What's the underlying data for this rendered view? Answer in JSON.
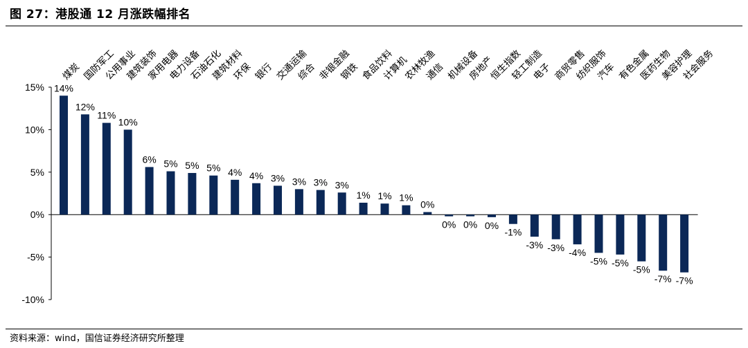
{
  "header": {
    "title": "图 27：港股通 12 月涨跌幅排名"
  },
  "footer": {
    "source": "资料来源：wind，国信证券经济研究所整理"
  },
  "colors": {
    "bar": "#0b2857",
    "axis": "#000000"
  },
  "chart_data": {
    "type": "bar",
    "title": "",
    "xlabel": "",
    "ylabel": "",
    "ylim": [
      -10,
      15
    ],
    "yticks": [
      15,
      10,
      5,
      0,
      -5,
      -10
    ],
    "ytick_labels": [
      "15%",
      "10%",
      "5%",
      "0%",
      "-5%",
      "-10%"
    ],
    "grid": false,
    "legend": "none",
    "categories": [
      "煤炭",
      "国防军工",
      "公用事业",
      "建筑装饰",
      "家用电器",
      "电力设备",
      "石油石化",
      "建筑材料",
      "环保",
      "银行",
      "交通运输",
      "综合",
      "非银金融",
      "钢铁",
      "食品饮料",
      "计算机",
      "农林牧渔",
      "通信",
      "机械设备",
      "房地产",
      "恒生指数",
      "轻工制造",
      "电子",
      "商贸零售",
      "纺织服饰",
      "汽车",
      "有色金属",
      "医药生物",
      "美容护理",
      "社会服务"
    ],
    "values": [
      14.0,
      11.8,
      10.8,
      10.0,
      5.6,
      5.1,
      4.9,
      4.6,
      4.1,
      3.7,
      3.4,
      3.0,
      2.9,
      2.6,
      1.4,
      1.3,
      1.1,
      0.3,
      -0.2,
      -0.2,
      -0.3,
      -1.1,
      -2.6,
      -2.9,
      -3.5,
      -4.5,
      -4.7,
      -5.5,
      -6.6,
      -6.8
    ],
    "data_labels": [
      "14%",
      "12%",
      "11%",
      "10%",
      "6%",
      "5%",
      "5%",
      "5%",
      "4%",
      "4%",
      "3%",
      "3%",
      "3%",
      "3%",
      "1%",
      "1%",
      "1%",
      "0%",
      "0%",
      "0%",
      "0%",
      "-1%",
      "-3%",
      "-3%",
      "-4%",
      "-5%",
      "-5%",
      "-5%",
      "-7%",
      "-7%"
    ]
  }
}
